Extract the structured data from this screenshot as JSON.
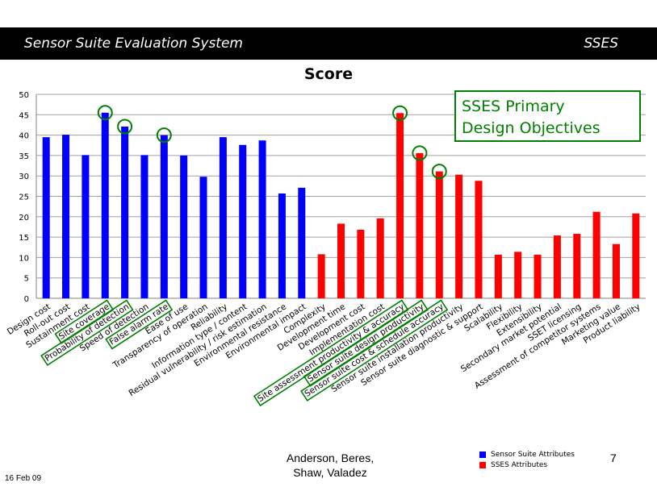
{
  "header": {
    "title": "Sensor Suite Evaluation System",
    "abbrev": "SSES"
  },
  "footer": {
    "date": "16 Feb 09",
    "authors_line1": "Anderson, Beres,",
    "authors_line2": "Shaw, Valadez",
    "page": "7"
  },
  "legend": [
    {
      "label": "Sensor Suite Attributes",
      "color": "#0000ff"
    },
    {
      "label": "SSES Attributes",
      "color": "#ff0000"
    }
  ],
  "callout": {
    "line1": "SSES Primary",
    "line2": "Design Objectives",
    "color": "#008000"
  },
  "chart_data": {
    "type": "bar",
    "title": "Score",
    "ylim": [
      0,
      50
    ],
    "yticks": [
      0,
      5,
      10,
      15,
      20,
      25,
      30,
      35,
      40,
      45,
      50
    ],
    "grid": true,
    "categories": [
      "Design cost",
      "Roll-out cost",
      "Sustainment cost",
      "Site coverage",
      "Probability of detection",
      "Speed of detection",
      "False alarm rate",
      "Ease of use",
      "Transparency of operation",
      "Reliability",
      "Information type / content",
      "Residual vulnerability / risk estimation",
      "Environmental resistance",
      "Environmental impact",
      "Complexity",
      "Development time",
      "Development cost",
      "Implementation cost",
      "Site assessment productivity & accuracy",
      "Sensor suite design productivity",
      "Sensor suite cost & schedule accuracy",
      "Sensor suite installation productivity",
      "Sensor suite diagnostic & support",
      "Scalability",
      "Flexibility",
      "Extensibility",
      "Secondary market potential",
      "SSET licensing",
      "Assessment of competitor systems",
      "Marketing value",
      "Product liability"
    ],
    "values": [
      39.5,
      40.1,
      35.1,
      45.5,
      42.1,
      35.1,
      40.0,
      35.0,
      29.8,
      39.5,
      37.6,
      38.7,
      25.7,
      27.1,
      10.8,
      18.3,
      16.8,
      19.6,
      45.4,
      35.6,
      31.1,
      30.3,
      28.8,
      10.7,
      11.4,
      10.7,
      15.4,
      15.8,
      21.2,
      13.3,
      20.8
    ],
    "group_sizes": [
      14,
      17
    ],
    "highlighted": [
      "Site coverage",
      "Probability of detection",
      "False alarm rate",
      "Site assessment productivity & accuracy",
      "Sensor suite design productivity",
      "Sensor suite cost & schedule accuracy"
    ]
  }
}
